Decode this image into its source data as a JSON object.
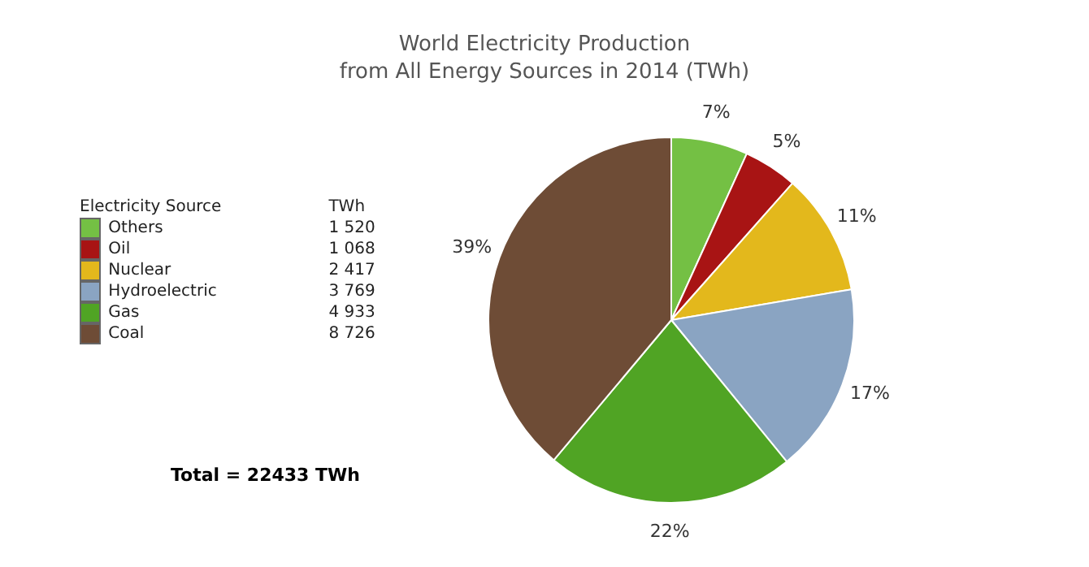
{
  "chart_data": {
    "type": "pie",
    "title": "World Electricity Production\nfrom All Energy Sources in 2014  (TWh)",
    "legend_title": "Electricity Source",
    "categories": [
      "Others",
      "Oil",
      "Nuclear",
      "Hydroelectric",
      "Gas",
      "Coal"
    ],
    "values": [
      1520,
      1068,
      2417,
      3769,
      4933,
      8726
    ],
    "colors": [
      "#74c044",
      "#a81414",
      "#e3b81c",
      "#8aa4c2",
      "#50a424",
      "#6e4c36"
    ],
    "value_labels": [
      "1 520",
      "1 068",
      "2 417",
      "3 769",
      "4 933",
      "8 726"
    ],
    "legend": "left",
    "annotations": [
      "TWh",
      "Total = 22433 TWh",
      {
        "text": "7%",
        "x": "Others"
      },
      {
        "text": "5%",
        "x": "Oil"
      },
      {
        "text": "11%",
        "x": "Nuclear"
      },
      {
        "text": "17%",
        "x": "Hydroelectric"
      },
      {
        "text": "22%",
        "x": "Gas"
      },
      {
        "text": "39%",
        "x": "Coal"
      }
    ]
  }
}
